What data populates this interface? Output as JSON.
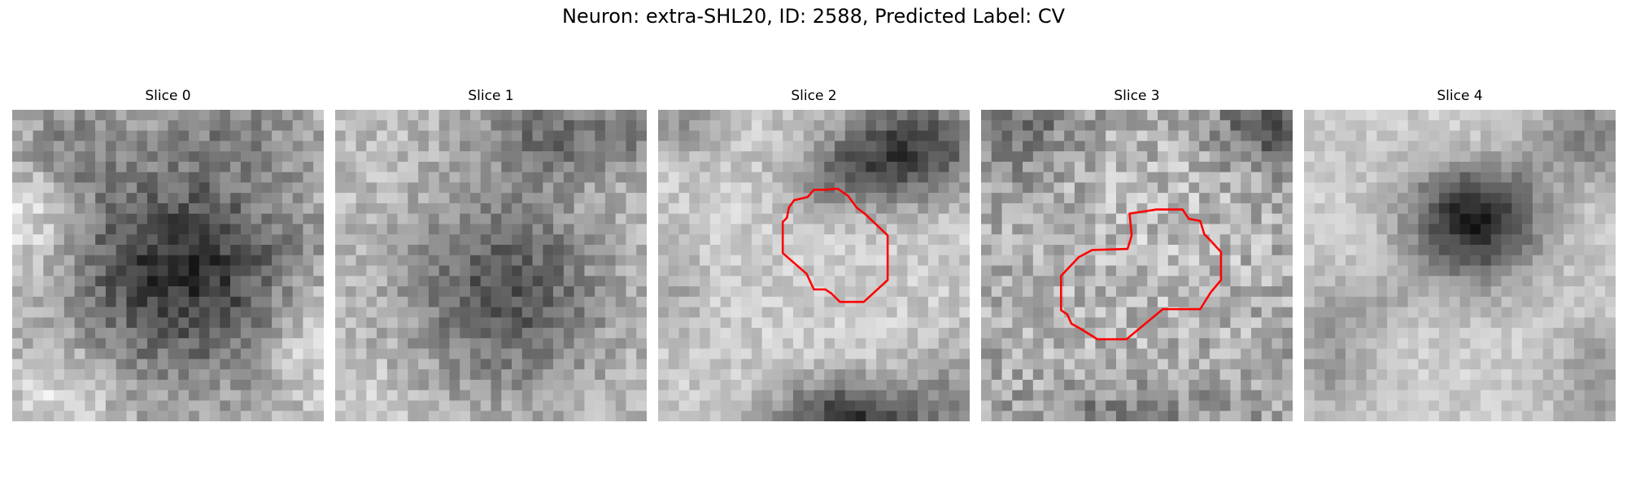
{
  "figure": {
    "title": "Neuron: extra-SHL20, ID: 2588, Predicted Label: CV",
    "outline_color": "#ff0000"
  },
  "slices": [
    {
      "label": "Slice 0",
      "has_outline": false
    },
    {
      "label": "Slice 1",
      "has_outline": false
    },
    {
      "label": "Slice 2",
      "has_outline": true
    },
    {
      "label": "Slice 3",
      "has_outline": true
    },
    {
      "label": "Slice 4",
      "has_outline": false
    }
  ]
}
